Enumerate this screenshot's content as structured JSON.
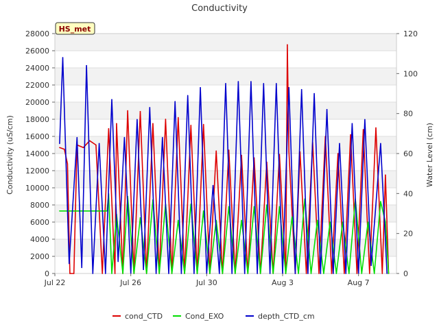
{
  "chart_data": {
    "type": "line",
    "title": "Conductivity",
    "badge": "HS_met",
    "ylabel": "Conductivity (uS/cm)",
    "y2label": "Water Level (cm)",
    "ylim": [
      0,
      28000
    ],
    "y2lim": [
      0,
      120
    ],
    "yticks": [
      0,
      2000,
      4000,
      6000,
      8000,
      10000,
      12000,
      14000,
      16000,
      18000,
      20000,
      22000,
      24000,
      26000,
      28000
    ],
    "y2ticks": [
      0,
      20,
      40,
      60,
      80,
      100,
      120
    ],
    "xlim": [
      "2024-07-22",
      "2024-08-09"
    ],
    "xticks": [
      {
        "date": "2024-07-22",
        "label": "Jul 22"
      },
      {
        "date": "2024-07-26",
        "label": "Jul 26"
      },
      {
        "date": "2024-07-30",
        "label": "Jul 30"
      },
      {
        "date": "2024-08-03",
        "label": "Aug 3"
      },
      {
        "date": "2024-08-07",
        "label": "Aug 7"
      }
    ],
    "grid": true,
    "legend_position": "bottom",
    "series": [
      {
        "name": "cond_CTD",
        "color": "#dd0000",
        "axis": "left",
        "points": [
          [
            "2024-07-22 06:00",
            14700
          ],
          [
            "2024-07-22 12:00",
            14500
          ],
          [
            "2024-07-22 16:00",
            12800
          ],
          [
            "2024-07-22 19:00",
            0
          ],
          [
            "2024-07-23 00:00",
            0
          ],
          [
            "2024-07-23 04:00",
            15000
          ],
          [
            "2024-07-23 12:00",
            14700
          ],
          [
            "2024-07-23 20:00",
            15500
          ],
          [
            "2024-07-24 04:00",
            15000
          ],
          [
            "2024-07-24 12:00",
            0
          ],
          [
            "2024-07-24 20:00",
            16900
          ],
          [
            "2024-07-25 04:00",
            0
          ],
          [
            "2024-07-25 06:00",
            17500
          ],
          [
            "2024-07-25 14:00",
            0
          ],
          [
            "2024-07-25 20:00",
            19000
          ],
          [
            "2024-07-26 04:00",
            0
          ],
          [
            "2024-07-26 12:00",
            18900
          ],
          [
            "2024-07-26 20:00",
            0
          ],
          [
            "2024-07-27 04:00",
            17500
          ],
          [
            "2024-07-27 12:00",
            0
          ],
          [
            "2024-07-27 20:00",
            18000
          ],
          [
            "2024-07-28 04:00",
            0
          ],
          [
            "2024-07-28 12:00",
            18200
          ],
          [
            "2024-07-28 20:00",
            0
          ],
          [
            "2024-07-29 04:00",
            17300
          ],
          [
            "2024-07-29 12:00",
            0
          ],
          [
            "2024-07-29 20:00",
            17400
          ],
          [
            "2024-07-30 04:00",
            0
          ],
          [
            "2024-07-30 12:00",
            14300
          ],
          [
            "2024-07-30 20:00",
            0
          ],
          [
            "2024-07-31 04:00",
            14400
          ],
          [
            "2024-07-31 12:00",
            0
          ],
          [
            "2024-07-31 20:00",
            13800
          ],
          [
            "2024-08-01 04:00",
            0
          ],
          [
            "2024-08-01 12:00",
            13500
          ],
          [
            "2024-08-01 20:00",
            0
          ],
          [
            "2024-08-02 04:00",
            13000
          ],
          [
            "2024-08-02 12:00",
            0
          ],
          [
            "2024-08-02 20:00",
            13900
          ],
          [
            "2024-08-03 04:00",
            0
          ],
          [
            "2024-08-03 06:00",
            26700
          ],
          [
            "2024-08-03 08:00",
            14200
          ],
          [
            "2024-08-03 16:00",
            0
          ],
          [
            "2024-08-03 22:00",
            14200
          ],
          [
            "2024-08-04 06:00",
            0
          ],
          [
            "2024-08-04 14:00",
            15300
          ],
          [
            "2024-08-04 22:00",
            0
          ],
          [
            "2024-08-05 06:00",
            16000
          ],
          [
            "2024-08-05 14:00",
            0
          ],
          [
            "2024-08-05 22:00",
            14000
          ],
          [
            "2024-08-06 06:00",
            0
          ],
          [
            "2024-08-06 14:00",
            16200
          ],
          [
            "2024-08-06 22:00",
            0
          ],
          [
            "2024-08-07 06:00",
            16800
          ],
          [
            "2024-08-07 14:00",
            0
          ],
          [
            "2024-08-07 22:00",
            17000
          ],
          [
            "2024-08-08 06:00",
            0
          ],
          [
            "2024-08-08 10:00",
            11500
          ],
          [
            "2024-08-08 14:00",
            0
          ]
        ]
      },
      {
        "name": "Cond_EXO",
        "color": "#00dd00",
        "axis": "left",
        "points": [
          [
            "2024-07-22 06:00",
            7300
          ],
          [
            "2024-07-23 00:00",
            7300
          ],
          [
            "2024-07-24 00:00",
            7300
          ],
          [
            "2024-07-24 18:00",
            7300
          ],
          [
            "2024-07-24 20:00",
            9300
          ],
          [
            "2024-07-25 00:00",
            0
          ],
          [
            "2024-07-25 06:00",
            6900
          ],
          [
            "2024-07-25 14:00",
            0
          ],
          [
            "2024-07-25 20:00",
            9000
          ],
          [
            "2024-07-26 04:00",
            0
          ],
          [
            "2024-07-26 12:00",
            6500
          ],
          [
            "2024-07-26 20:00",
            0
          ],
          [
            "2024-07-27 04:00",
            8600
          ],
          [
            "2024-07-27 12:00",
            0
          ],
          [
            "2024-07-27 20:00",
            8100
          ],
          [
            "2024-07-28 04:00",
            0
          ],
          [
            "2024-07-28 12:00",
            6200
          ],
          [
            "2024-07-28 20:00",
            0
          ],
          [
            "2024-07-29 04:00",
            8100
          ],
          [
            "2024-07-29 12:00",
            0
          ],
          [
            "2024-07-29 20:00",
            7300
          ],
          [
            "2024-07-30 04:00",
            0
          ],
          [
            "2024-07-30 12:00",
            6200
          ],
          [
            "2024-07-30 20:00",
            0
          ],
          [
            "2024-07-31 04:00",
            7800
          ],
          [
            "2024-07-31 12:00",
            0
          ],
          [
            "2024-07-31 20:00",
            6200
          ],
          [
            "2024-08-01 04:00",
            0
          ],
          [
            "2024-08-01 12:00",
            7800
          ],
          [
            "2024-08-01 20:00",
            0
          ],
          [
            "2024-08-02 04:00",
            8000
          ],
          [
            "2024-08-02 12:00",
            0
          ],
          [
            "2024-08-02 20:00",
            7800
          ],
          [
            "2024-08-03 04:00",
            0
          ],
          [
            "2024-08-03 12:00",
            6600
          ],
          [
            "2024-08-03 20:00",
            0
          ],
          [
            "2024-08-04 04:00",
            8700
          ],
          [
            "2024-08-04 12:00",
            0
          ],
          [
            "2024-08-04 20:00",
            6200
          ],
          [
            "2024-08-05 04:00",
            0
          ],
          [
            "2024-08-05 12:00",
            6000
          ],
          [
            "2024-08-05 20:00",
            0
          ],
          [
            "2024-08-06 04:00",
            6000
          ],
          [
            "2024-08-06 12:00",
            0
          ],
          [
            "2024-08-06 20:00",
            8700
          ],
          [
            "2024-08-07 04:00",
            0
          ],
          [
            "2024-08-07 12:00",
            6000
          ],
          [
            "2024-08-07 20:00",
            0
          ],
          [
            "2024-08-08 04:00",
            8400
          ],
          [
            "2024-08-08 10:00",
            6000
          ],
          [
            "2024-08-08 14:00",
            0
          ]
        ]
      },
      {
        "name": "depth_CTD_cm",
        "color": "#0000cc",
        "axis": "right",
        "points": [
          [
            "2024-07-22 06:00",
            65
          ],
          [
            "2024-07-22 10:00",
            108
          ],
          [
            "2024-07-22 18:00",
            5
          ],
          [
            "2024-07-23 04:00",
            68
          ],
          [
            "2024-07-23 10:00",
            3
          ],
          [
            "2024-07-23 16:00",
            104
          ],
          [
            "2024-07-24 00:00",
            0
          ],
          [
            "2024-07-24 08:00",
            65
          ],
          [
            "2024-07-24 16:00",
            0
          ],
          [
            "2024-07-25 00:00",
            87
          ],
          [
            "2024-07-25 08:00",
            6
          ],
          [
            "2024-07-25 16:00",
            68
          ],
          [
            "2024-07-26 00:00",
            0
          ],
          [
            "2024-07-26 08:00",
            77
          ],
          [
            "2024-07-26 16:00",
            2
          ],
          [
            "2024-07-27 00:00",
            83
          ],
          [
            "2024-07-27 08:00",
            0
          ],
          [
            "2024-07-27 16:00",
            68
          ],
          [
            "2024-07-28 00:00",
            0
          ],
          [
            "2024-07-28 08:00",
            86
          ],
          [
            "2024-07-28 16:00",
            0
          ],
          [
            "2024-07-29 00:00",
            89
          ],
          [
            "2024-07-29 08:00",
            0
          ],
          [
            "2024-07-29 16:00",
            93
          ],
          [
            "2024-07-30 00:00",
            0
          ],
          [
            "2024-07-30 08:00",
            44
          ],
          [
            "2024-07-30 16:00",
            0
          ],
          [
            "2024-07-31 00:00",
            95
          ],
          [
            "2024-07-31 08:00",
            0
          ],
          [
            "2024-07-31 16:00",
            96
          ],
          [
            "2024-08-01 00:00",
            0
          ],
          [
            "2024-08-01 08:00",
            96
          ],
          [
            "2024-08-01 16:00",
            0
          ],
          [
            "2024-08-02 00:00",
            95
          ],
          [
            "2024-08-02 08:00",
            0
          ],
          [
            "2024-08-02 16:00",
            95
          ],
          [
            "2024-08-03 00:00",
            0
          ],
          [
            "2024-08-03 08:00",
            93
          ],
          [
            "2024-08-03 16:00",
            0
          ],
          [
            "2024-08-04 00:00",
            92
          ],
          [
            "2024-08-04 08:00",
            0
          ],
          [
            "2024-08-04 16:00",
            90
          ],
          [
            "2024-08-05 00:00",
            0
          ],
          [
            "2024-08-05 08:00",
            82
          ],
          [
            "2024-08-05 16:00",
            0
          ],
          [
            "2024-08-06 00:00",
            65
          ],
          [
            "2024-08-06 08:00",
            0
          ],
          [
            "2024-08-06 16:00",
            75
          ],
          [
            "2024-08-07 00:00",
            0
          ],
          [
            "2024-08-07 08:00",
            77
          ],
          [
            "2024-08-07 16:00",
            4
          ],
          [
            "2024-08-08 04:00",
            65
          ],
          [
            "2024-08-08 12:00",
            0
          ]
        ]
      }
    ]
  }
}
